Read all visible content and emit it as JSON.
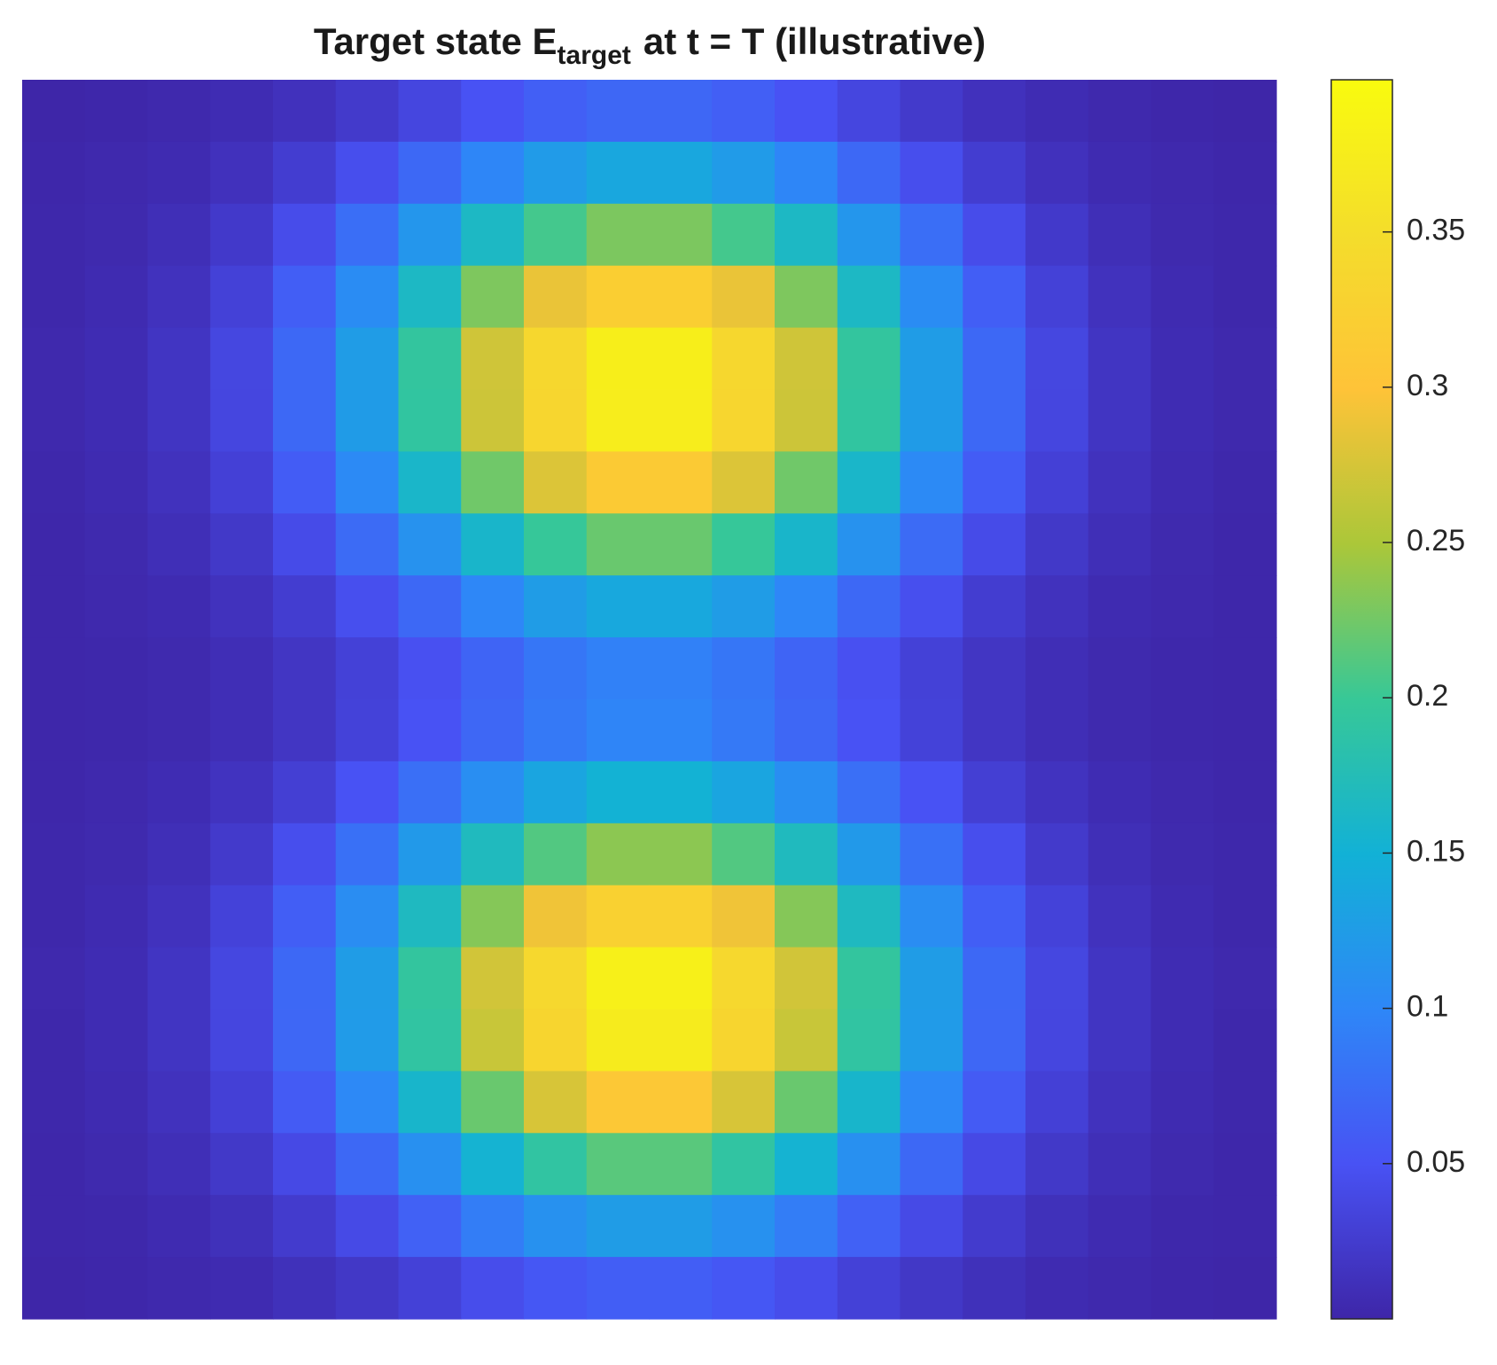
{
  "chart_data": {
    "type": "heatmap",
    "title_parts": [
      "Target state E",
      "target",
      "at t = T (illustrative)"
    ],
    "colormap": [
      "#3e26a8",
      "#4852f4",
      "#2e87f7",
      "#12b1d6",
      "#37c897",
      "#abc739",
      "#fec338",
      "#f4dd2b",
      "#f9fb0e"
    ],
    "clim": [
      0,
      0.399
    ],
    "colorbar_ticks": [
      0.05,
      0.1,
      0.15,
      0.2,
      0.25,
      0.3,
      0.35
    ],
    "z": [
      [
        0.0,
        0.001,
        0.003,
        0.007,
        0.013,
        0.023,
        0.036,
        0.05,
        0.062,
        0.07,
        0.07,
        0.062,
        0.05,
        0.036,
        0.023,
        0.013,
        0.007,
        0.003,
        0.001,
        0.0
      ],
      [
        0.001,
        0.003,
        0.006,
        0.013,
        0.026,
        0.045,
        0.071,
        0.099,
        0.123,
        0.138,
        0.138,
        0.123,
        0.099,
        0.071,
        0.045,
        0.026,
        0.013,
        0.006,
        0.003,
        0.001
      ],
      [
        0.002,
        0.004,
        0.01,
        0.022,
        0.043,
        0.076,
        0.117,
        0.164,
        0.205,
        0.229,
        0.229,
        0.205,
        0.164,
        0.117,
        0.076,
        0.043,
        0.022,
        0.01,
        0.004,
        0.002
      ],
      [
        0.002,
        0.006,
        0.014,
        0.031,
        0.061,
        0.106,
        0.164,
        0.23,
        0.287,
        0.321,
        0.321,
        0.287,
        0.23,
        0.164,
        0.106,
        0.061,
        0.031,
        0.014,
        0.006,
        0.002
      ],
      [
        0.003,
        0.007,
        0.017,
        0.037,
        0.071,
        0.125,
        0.194,
        0.271,
        0.338,
        0.378,
        0.378,
        0.338,
        0.271,
        0.194,
        0.125,
        0.071,
        0.037,
        0.017,
        0.007,
        0.003
      ],
      [
        0.003,
        0.007,
        0.017,
        0.036,
        0.071,
        0.124,
        0.192,
        0.269,
        0.335,
        0.375,
        0.375,
        0.335,
        0.269,
        0.192,
        0.124,
        0.071,
        0.036,
        0.017,
        0.007,
        0.003
      ],
      [
        0.002,
        0.006,
        0.014,
        0.03,
        0.059,
        0.103,
        0.16,
        0.224,
        0.279,
        0.313,
        0.313,
        0.279,
        0.224,
        0.16,
        0.103,
        0.059,
        0.03,
        0.014,
        0.006,
        0.002
      ],
      [
        0.001,
        0.004,
        0.01,
        0.021,
        0.042,
        0.073,
        0.113,
        0.159,
        0.198,
        0.221,
        0.221,
        0.198,
        0.159,
        0.113,
        0.073,
        0.042,
        0.021,
        0.01,
        0.004,
        0.001
      ],
      [
        0.001,
        0.003,
        0.006,
        0.014,
        0.026,
        0.046,
        0.071,
        0.1,
        0.125,
        0.139,
        0.139,
        0.125,
        0.1,
        0.071,
        0.046,
        0.026,
        0.014,
        0.006,
        0.003,
        0.001
      ],
      [
        0.001,
        0.002,
        0.004,
        0.009,
        0.018,
        0.031,
        0.048,
        0.067,
        0.084,
        0.094,
        0.094,
        0.084,
        0.067,
        0.048,
        0.031,
        0.018,
        0.009,
        0.004,
        0.002,
        0.001
      ],
      [
        0.001,
        0.002,
        0.004,
        0.009,
        0.018,
        0.032,
        0.05,
        0.07,
        0.087,
        0.098,
        0.098,
        0.087,
        0.07,
        0.05,
        0.032,
        0.018,
        0.009,
        0.004,
        0.002,
        0.001
      ],
      [
        0.001,
        0.003,
        0.007,
        0.015,
        0.028,
        0.05,
        0.077,
        0.108,
        0.135,
        0.151,
        0.151,
        0.135,
        0.108,
        0.077,
        0.05,
        0.028,
        0.015,
        0.007,
        0.003,
        0.001
      ],
      [
        0.002,
        0.004,
        0.01,
        0.023,
        0.045,
        0.078,
        0.121,
        0.169,
        0.211,
        0.236,
        0.236,
        0.211,
        0.169,
        0.121,
        0.078,
        0.045,
        0.023,
        0.01,
        0.004,
        0.002
      ],
      [
        0.002,
        0.006,
        0.014,
        0.032,
        0.061,
        0.107,
        0.167,
        0.233,
        0.291,
        0.326,
        0.326,
        0.291,
        0.233,
        0.167,
        0.107,
        0.061,
        0.032,
        0.014,
        0.006,
        0.002
      ],
      [
        0.003,
        0.007,
        0.017,
        0.037,
        0.071,
        0.125,
        0.194,
        0.272,
        0.339,
        0.38,
        0.38,
        0.339,
        0.272,
        0.194,
        0.125,
        0.071,
        0.037,
        0.017,
        0.007,
        0.003
      ],
      [
        0.002,
        0.007,
        0.017,
        0.036,
        0.07,
        0.123,
        0.191,
        0.267,
        0.333,
        0.373,
        0.373,
        0.333,
        0.267,
        0.191,
        0.123,
        0.07,
        0.036,
        0.017,
        0.007,
        0.002
      ],
      [
        0.002,
        0.006,
        0.014,
        0.03,
        0.058,
        0.102,
        0.158,
        0.221,
        0.276,
        0.308,
        0.308,
        0.276,
        0.221,
        0.158,
        0.102,
        0.058,
        0.03,
        0.014,
        0.006,
        0.002
      ],
      [
        0.001,
        0.004,
        0.01,
        0.021,
        0.04,
        0.071,
        0.11,
        0.153,
        0.191,
        0.214,
        0.214,
        0.191,
        0.153,
        0.11,
        0.071,
        0.04,
        0.021,
        0.01,
        0.004,
        0.001
      ],
      [
        0.001,
        0.002,
        0.006,
        0.012,
        0.024,
        0.041,
        0.064,
        0.09,
        0.112,
        0.125,
        0.125,
        0.112,
        0.09,
        0.064,
        0.041,
        0.024,
        0.012,
        0.006,
        0.002,
        0.001
      ],
      [
        0.0,
        0.001,
        0.003,
        0.006,
        0.012,
        0.02,
        0.031,
        0.044,
        0.055,
        0.061,
        0.061,
        0.055,
        0.044,
        0.031,
        0.02,
        0.012,
        0.006,
        0.003,
        0.001,
        0.0
      ]
    ]
  }
}
